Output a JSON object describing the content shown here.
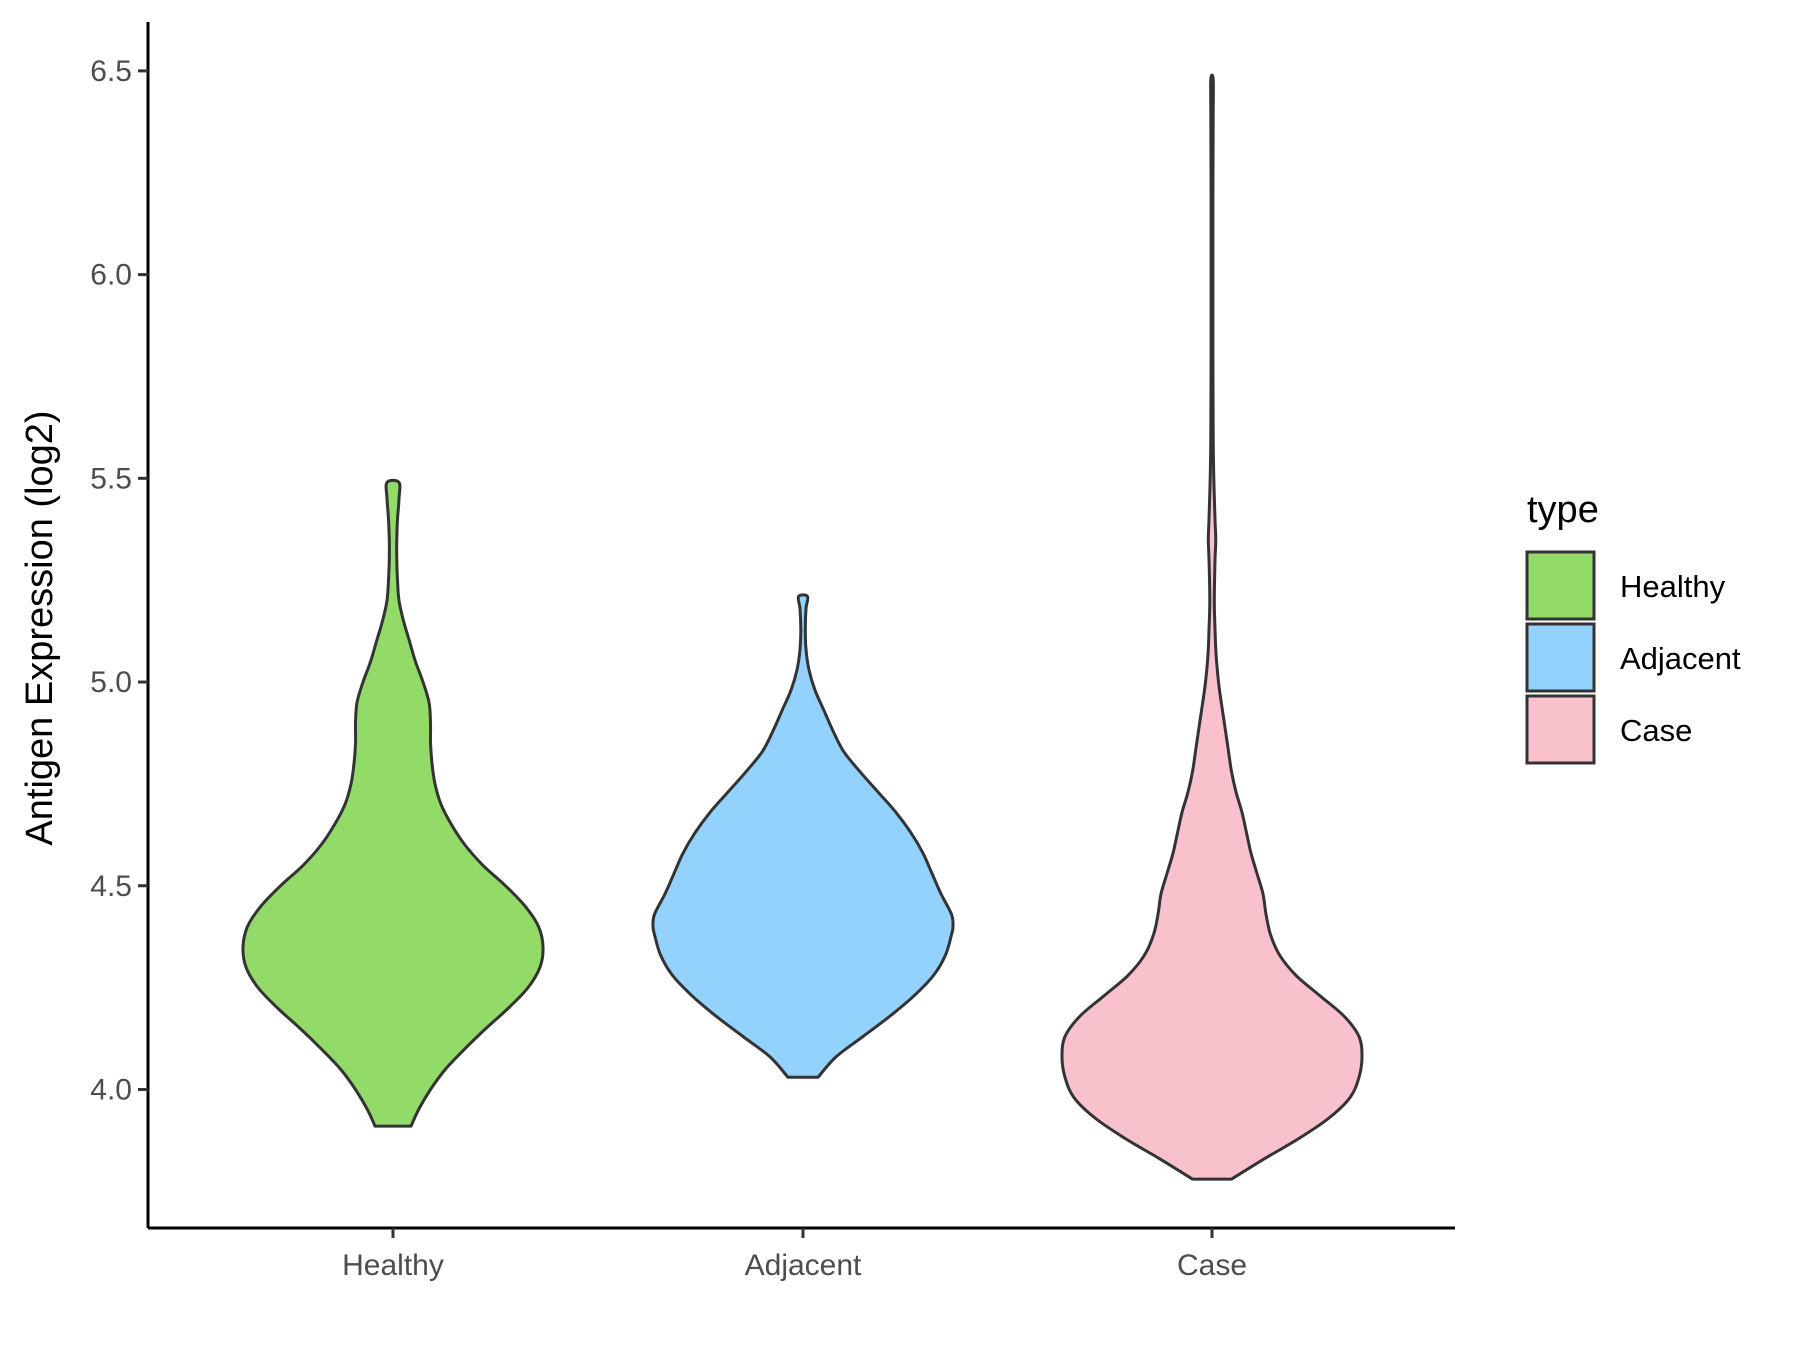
{
  "chart_data": {
    "type": "violin",
    "ylabel": "Antigen Expression (log2)",
    "xlabel": "",
    "ylim": [
      3.66,
      6.62
    ],
    "yticks": [
      "4.0",
      "4.5",
      "5.0",
      "5.5",
      "6.0",
      "6.5"
    ],
    "categories": [
      "Healthy",
      "Adjacent",
      "Case"
    ],
    "grid": false,
    "legend": {
      "title": "type",
      "placement": "right",
      "entries": [
        "Healthy",
        "Adjacent",
        "Case"
      ]
    },
    "colors": {
      "Healthy": "#93db69",
      "Adjacent": "#93d2fd",
      "Case": "#f8c1cc",
      "outline": "#333333"
    },
    "series": [
      {
        "category": "Healthy",
        "min": 3.91,
        "max": 5.49,
        "profile": [
          [
            3.91,
            0.12
          ],
          [
            3.95,
            0.17
          ],
          [
            4.0,
            0.25
          ],
          [
            4.05,
            0.35
          ],
          [
            4.1,
            0.48
          ],
          [
            4.15,
            0.62
          ],
          [
            4.2,
            0.77
          ],
          [
            4.25,
            0.9
          ],
          [
            4.3,
            0.98
          ],
          [
            4.35,
            1.0
          ],
          [
            4.4,
            0.97
          ],
          [
            4.45,
            0.88
          ],
          [
            4.5,
            0.75
          ],
          [
            4.55,
            0.6
          ],
          [
            4.6,
            0.48
          ],
          [
            4.65,
            0.39
          ],
          [
            4.7,
            0.32
          ],
          [
            4.75,
            0.28
          ],
          [
            4.8,
            0.26
          ],
          [
            4.85,
            0.25
          ],
          [
            4.9,
            0.25
          ],
          [
            4.95,
            0.24
          ],
          [
            5.0,
            0.2
          ],
          [
            5.05,
            0.15
          ],
          [
            5.1,
            0.11
          ],
          [
            5.15,
            0.07
          ],
          [
            5.2,
            0.04
          ],
          [
            5.25,
            0.03
          ],
          [
            5.3,
            0.025
          ],
          [
            5.35,
            0.025
          ],
          [
            5.4,
            0.03
          ],
          [
            5.45,
            0.04
          ],
          [
            5.49,
            0.04
          ]
        ]
      },
      {
        "category": "Adjacent",
        "min": 4.03,
        "max": 5.21,
        "profile": [
          [
            4.03,
            0.1
          ],
          [
            4.08,
            0.22
          ],
          [
            4.13,
            0.4
          ],
          [
            4.18,
            0.58
          ],
          [
            4.23,
            0.74
          ],
          [
            4.28,
            0.87
          ],
          [
            4.33,
            0.95
          ],
          [
            4.38,
            0.99
          ],
          [
            4.4,
            1.0
          ],
          [
            4.43,
            0.99
          ],
          [
            4.48,
            0.92
          ],
          [
            4.53,
            0.86
          ],
          [
            4.58,
            0.8
          ],
          [
            4.63,
            0.72
          ],
          [
            4.68,
            0.62
          ],
          [
            4.73,
            0.5
          ],
          [
            4.78,
            0.38
          ],
          [
            4.83,
            0.27
          ],
          [
            4.88,
            0.2
          ],
          [
            4.93,
            0.14
          ],
          [
            4.98,
            0.08
          ],
          [
            5.03,
            0.04
          ],
          [
            5.08,
            0.02
          ],
          [
            5.13,
            0.015
          ],
          [
            5.18,
            0.02
          ],
          [
            5.21,
            0.03
          ]
        ]
      },
      {
        "category": "Case",
        "min": 3.78,
        "max": 6.48,
        "profile": [
          [
            3.78,
            0.13
          ],
          [
            3.83,
            0.35
          ],
          [
            3.88,
            0.58
          ],
          [
            3.93,
            0.78
          ],
          [
            3.98,
            0.92
          ],
          [
            4.03,
            0.98
          ],
          [
            4.08,
            1.0
          ],
          [
            4.13,
            0.98
          ],
          [
            4.18,
            0.88
          ],
          [
            4.23,
            0.72
          ],
          [
            4.28,
            0.56
          ],
          [
            4.33,
            0.45
          ],
          [
            4.38,
            0.39
          ],
          [
            4.43,
            0.36
          ],
          [
            4.48,
            0.34
          ],
          [
            4.53,
            0.3
          ],
          [
            4.58,
            0.26
          ],
          [
            4.63,
            0.23
          ],
          [
            4.68,
            0.2
          ],
          [
            4.73,
            0.16
          ],
          [
            4.78,
            0.13
          ],
          [
            4.83,
            0.11
          ],
          [
            4.88,
            0.09
          ],
          [
            4.93,
            0.07
          ],
          [
            4.98,
            0.05
          ],
          [
            5.03,
            0.035
          ],
          [
            5.08,
            0.025
          ],
          [
            5.13,
            0.02
          ],
          [
            5.2,
            0.015
          ],
          [
            5.3,
            0.02
          ],
          [
            5.35,
            0.025
          ],
          [
            5.4,
            0.02
          ],
          [
            5.5,
            0.012
          ],
          [
            5.6,
            0.008
          ],
          [
            5.8,
            0.006
          ],
          [
            6.0,
            0.006
          ],
          [
            6.2,
            0.006
          ],
          [
            6.4,
            0.008
          ],
          [
            6.48,
            0.008
          ]
        ]
      }
    ]
  }
}
